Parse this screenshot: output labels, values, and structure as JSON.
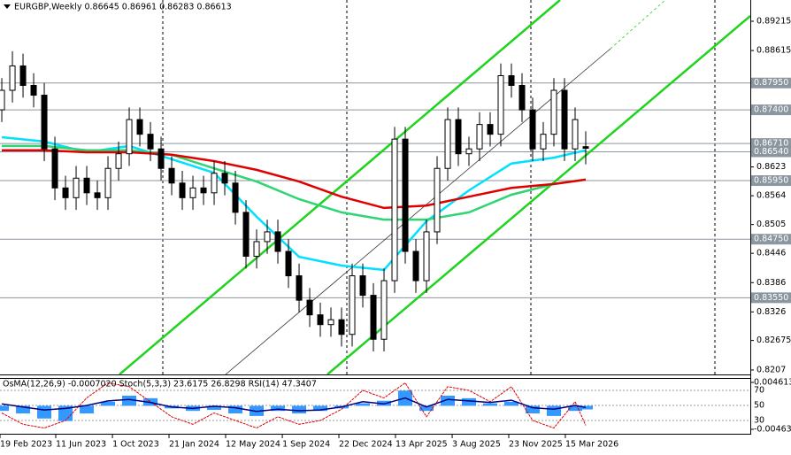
{
  "chart_data": {
    "type": "candlestick",
    "title": "EURGBP,Weekly 0.86645 0.86961 0.86283 0.86613",
    "ohlc": [
      [
        0.874,
        0.8805,
        0.8715,
        0.878
      ],
      [
        0.878,
        0.886,
        0.8755,
        0.883
      ],
      [
        0.883,
        0.8855,
        0.8765,
        0.879
      ],
      [
        0.879,
        0.8815,
        0.8745,
        0.877
      ],
      [
        0.877,
        0.8795,
        0.8635,
        0.866
      ],
      [
        0.866,
        0.8685,
        0.8555,
        0.858
      ],
      [
        0.858,
        0.8605,
        0.8535,
        0.856
      ],
      [
        0.856,
        0.8625,
        0.8535,
        0.86
      ],
      [
        0.86,
        0.8625,
        0.8545,
        0.857
      ],
      [
        0.857,
        0.8595,
        0.8535,
        0.856
      ],
      [
        0.856,
        0.8645,
        0.8535,
        0.862
      ],
      [
        0.862,
        0.8675,
        0.8595,
        0.865
      ],
      [
        0.865,
        0.8745,
        0.8625,
        0.872
      ],
      [
        0.872,
        0.8745,
        0.8665,
        0.869
      ],
      [
        0.869,
        0.8715,
        0.8635,
        0.866
      ],
      [
        0.866,
        0.8685,
        0.8595,
        0.862
      ],
      [
        0.862,
        0.8645,
        0.8565,
        0.859
      ],
      [
        0.859,
        0.8615,
        0.8535,
        0.856
      ],
      [
        0.856,
        0.8605,
        0.8535,
        0.858
      ],
      [
        0.858,
        0.8605,
        0.8545,
        0.857
      ],
      [
        0.857,
        0.8635,
        0.8545,
        0.861
      ],
      [
        0.861,
        0.8635,
        0.8565,
        0.859
      ],
      [
        0.859,
        0.8615,
        0.8505,
        0.853
      ],
      [
        0.853,
        0.8555,
        0.8415,
        0.844
      ],
      [
        0.844,
        0.8495,
        0.8415,
        0.847
      ],
      [
        0.847,
        0.8515,
        0.8445,
        0.849
      ],
      [
        0.849,
        0.8515,
        0.8425,
        0.845
      ],
      [
        0.845,
        0.8475,
        0.8375,
        0.84
      ],
      [
        0.84,
        0.8425,
        0.8325,
        0.835
      ],
      [
        0.835,
        0.8375,
        0.8295,
        0.832
      ],
      [
        0.832,
        0.8345,
        0.8275,
        0.83
      ],
      [
        0.83,
        0.8335,
        0.8275,
        0.831
      ],
      [
        0.831,
        0.8335,
        0.8255,
        0.828
      ],
      [
        0.828,
        0.8425,
        0.8255,
        0.84
      ],
      [
        0.84,
        0.8425,
        0.8335,
        0.836
      ],
      [
        0.836,
        0.8385,
        0.8245,
        0.827
      ],
      [
        0.827,
        0.8415,
        0.8245,
        0.839
      ],
      [
        0.839,
        0.8705,
        0.8365,
        0.868
      ],
      [
        0.868,
        0.8705,
        0.8425,
        0.845
      ],
      [
        0.845,
        0.8475,
        0.8365,
        0.839
      ],
      [
        0.839,
        0.8515,
        0.8365,
        0.849
      ],
      [
        0.849,
        0.8645,
        0.8465,
        0.862
      ],
      [
        0.862,
        0.8745,
        0.8595,
        0.872
      ],
      [
        0.872,
        0.8745,
        0.8625,
        0.865
      ],
      [
        0.865,
        0.8685,
        0.8625,
        0.866
      ],
      [
        0.866,
        0.8735,
        0.8635,
        0.871
      ],
      [
        0.871,
        0.8735,
        0.8665,
        0.869
      ],
      [
        0.869,
        0.8835,
        0.8665,
        0.881
      ],
      [
        0.881,
        0.8835,
        0.8765,
        0.879
      ],
      [
        0.879,
        0.8815,
        0.8715,
        0.874
      ],
      [
        0.874,
        0.8765,
        0.8635,
        0.866
      ],
      [
        0.866,
        0.8715,
        0.8635,
        0.869
      ],
      [
        0.869,
        0.8805,
        0.8665,
        0.878
      ],
      [
        0.878,
        0.8805,
        0.8635,
        0.866
      ],
      [
        0.866,
        0.8745,
        0.8635,
        0.872
      ],
      [
        0.86645,
        0.86961,
        0.86283,
        0.86613
      ]
    ],
    "xlim": [
      -0.17,
      70.5
    ],
    "xticks": [
      {
        "value": -0.17,
        "label": "19 Feb 2023"
      },
      {
        "value": 5.08,
        "label": "11 Jun 2023"
      },
      {
        "value": 10.42,
        "label": "1 Oct 2023"
      },
      {
        "value": 15.75,
        "label": "21 Jan 2024"
      },
      {
        "value": 21.08,
        "label": "12 May 2024"
      },
      {
        "value": 26.42,
        "label": "1 Sep 2024"
      },
      {
        "value": 31.75,
        "label": "22 Dec 2024"
      },
      {
        "value": 37.08,
        "label": "13 Apr 2025"
      },
      {
        "value": 42.42,
        "label": "3 Aug 2025"
      },
      {
        "value": 47.75,
        "label": "23 Nov 2025"
      },
      {
        "value": 53.08,
        "label": "15 Mar 2026"
      }
    ],
    "ylim": [
      0.81979,
      0.8965
    ],
    "yticks": [
      0.89215,
      0.88615,
      0.8623,
      0.8564,
      0.8505,
      0.8446,
      0.8386,
      0.8326,
      0.82675,
      0.8207
    ],
    "levels": [
      {
        "value": 0.8795,
        "label": "0.87950"
      },
      {
        "value": 0.874,
        "label": "0.87400"
      },
      {
        "value": 0.8671,
        "label": "0.86710"
      },
      {
        "value": 0.8654,
        "label": "0.86540"
      },
      {
        "value": 0.8595,
        "label": "0.85950"
      },
      {
        "value": 0.8475,
        "label": "0.84750"
      },
      {
        "value": 0.8355,
        "label": "0.83550"
      }
    ],
    "level_color": "#8c969f",
    "moving_averages": [
      {
        "color": "#00e0ff",
        "x": [
          0,
          4,
          8,
          12,
          16,
          20,
          24,
          28,
          32,
          36,
          40,
          44,
          48,
          52,
          55
        ],
        "values": [
          0.8684,
          0.8675,
          0.8653,
          0.8666,
          0.8639,
          0.8611,
          0.8521,
          0.8439,
          0.8421,
          0.8412,
          0.8512,
          0.8575,
          0.863,
          0.8642,
          0.8657
        ]
      },
      {
        "color": "#2ed573",
        "x": [
          0,
          4,
          8,
          12,
          16,
          20,
          24,
          28,
          32,
          36,
          40,
          44,
          48,
          52,
          55
        ],
        "values": [
          0.8666,
          0.8666,
          0.8657,
          0.8657,
          0.8648,
          0.862,
          0.8593,
          0.8557,
          0.853,
          0.8515,
          0.8515,
          0.853,
          0.8566,
          0.8588,
          0.8597
        ]
      },
      {
        "color": "#e00000",
        "x": [
          0,
          4,
          8,
          12,
          16,
          20,
          24,
          28,
          32,
          36,
          40,
          44,
          48,
          52,
          55
        ],
        "values": [
          0.8657,
          0.8657,
          0.8653,
          0.8653,
          0.8648,
          0.8635,
          0.8617,
          0.8593,
          0.8562,
          0.8539,
          0.8544,
          0.8562,
          0.858,
          0.8588,
          0.8597
        ]
      }
    ],
    "indicator": {
      "title": "OsMA(12,26,9) -0.0007020 Stoch(5,3,3) 23.6175 26.8298 RSI(14) 47.3407",
      "x": [
        0,
        2,
        4,
        6,
        8,
        10,
        12,
        14,
        16,
        18,
        20,
        22,
        24,
        26,
        28,
        30,
        32,
        34,
        36,
        38,
        40,
        42,
        44,
        46,
        48,
        50,
        52,
        54,
        55
      ],
      "osma": {
        "color": "#3399ff",
        "ylim": [
          -0.005503,
          0.0053112
        ],
        "yticks": [
          0.0046135,
          -0.004631
        ],
        "values": [
          -0.001,
          -0.0015,
          -0.0025,
          -0.003,
          -0.0015,
          0.0008,
          0.002,
          0.0015,
          -0.0005,
          -0.001,
          -0.0008,
          -0.0015,
          -0.002,
          -0.001,
          -0.0015,
          -0.001,
          -0.0005,
          0.0005,
          0.001,
          0.003,
          -0.001,
          0.002,
          0.0015,
          0.0005,
          0.0008,
          -0.0015,
          -0.002,
          -0.001,
          -0.000702
        ]
      },
      "ylim": [
        12.4,
        85.3
      ],
      "yticks": [
        70,
        50,
        30
      ],
      "stoch": {
        "color": "#e00000",
        "values": [
          40,
          25,
          20,
          30,
          60,
          80,
          75,
          55,
          35,
          25,
          40,
          30,
          20,
          35,
          25,
          30,
          45,
          70,
          60,
          80,
          35,
          75,
          70,
          55,
          75,
          30,
          20,
          55,
          23.6175
        ]
      },
      "rsi": {
        "color": "#000080",
        "values": [
          52,
          48,
          44,
          46,
          50,
          56,
          58,
          54,
          48,
          46,
          49,
          47,
          42,
          45,
          43,
          44,
          48,
          55,
          52,
          60,
          48,
          58,
          56,
          54,
          57,
          47,
          45,
          50,
          47.3407
        ]
      }
    }
  }
}
